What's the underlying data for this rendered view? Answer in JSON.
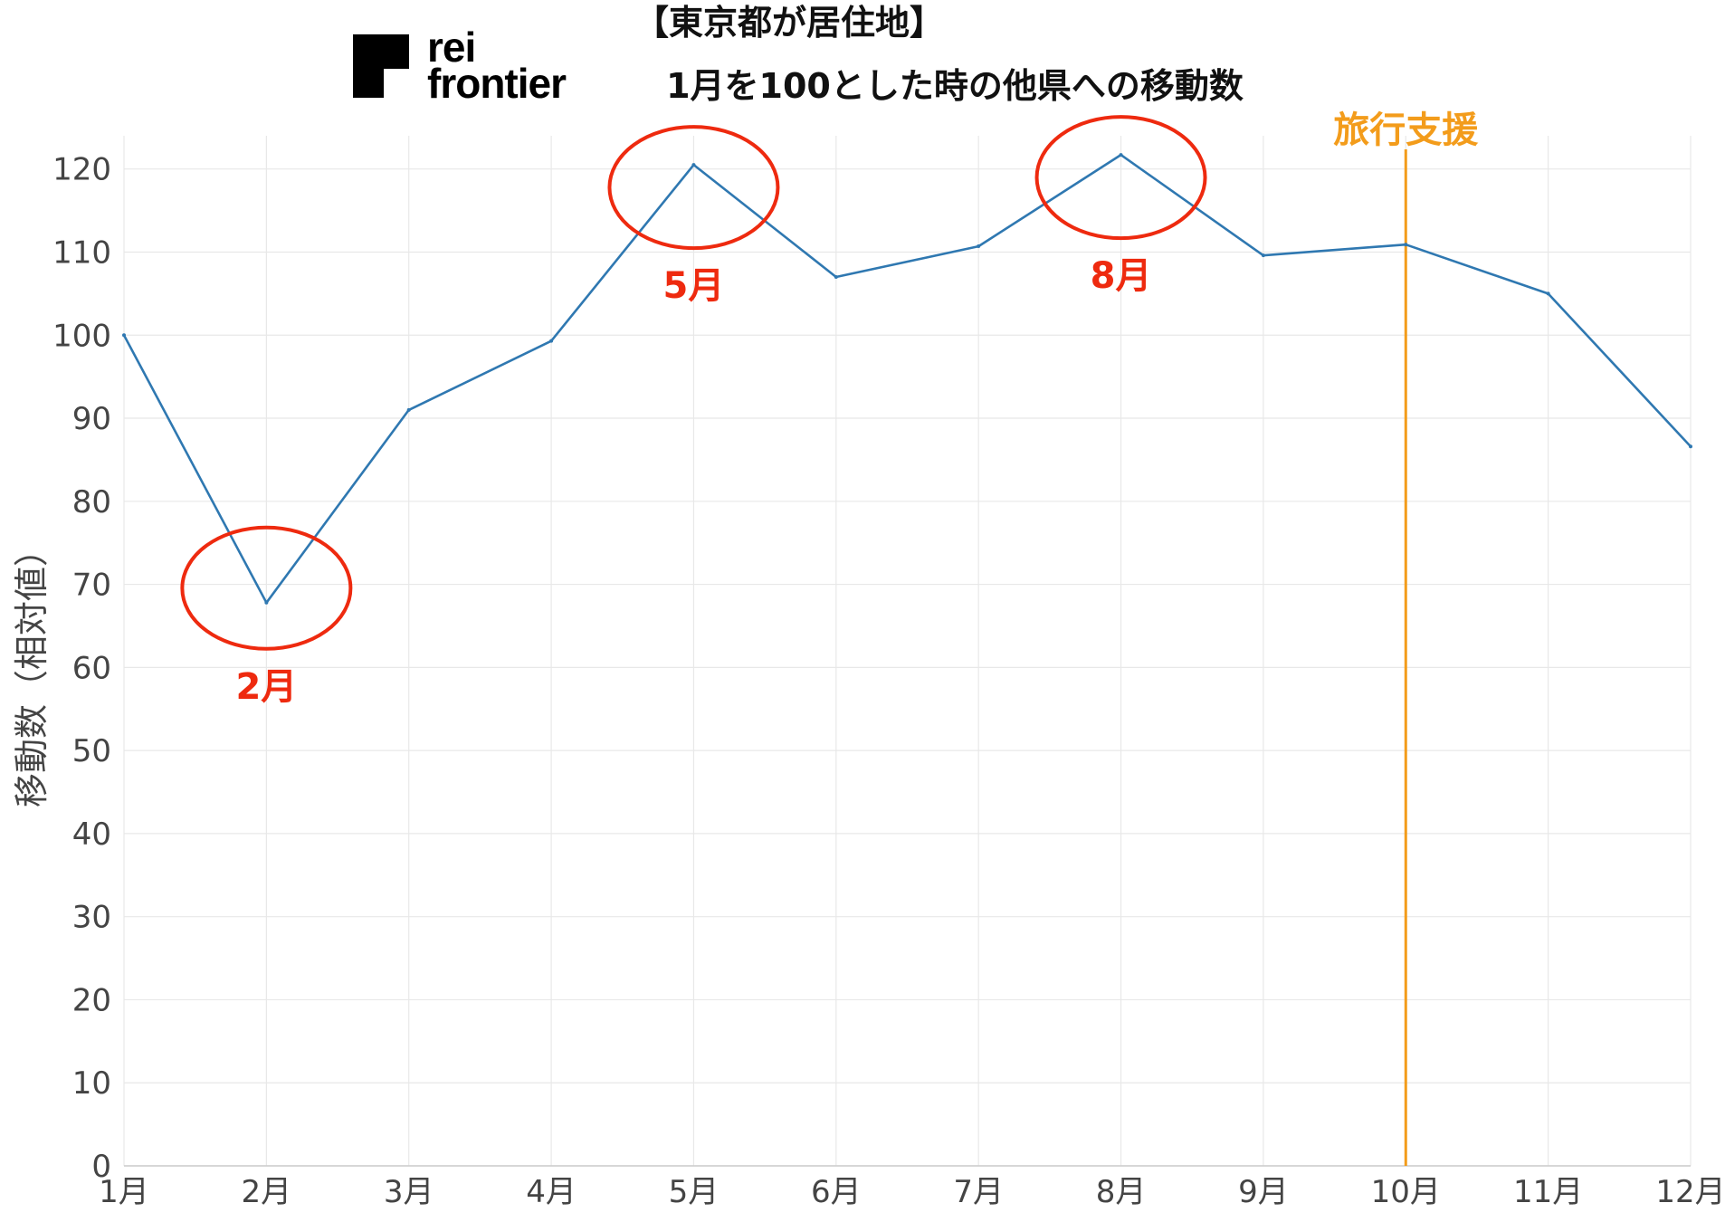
{
  "colors": {
    "line": "#2f78b1",
    "annotation": "#ee2a0f",
    "reference": "#f39c1b",
    "grid": "#e8e8e8",
    "text": "#444444"
  },
  "logo": {
    "line1": "rei",
    "line2": "frontier",
    "icon": "flag-logo-icon"
  },
  "chart_data": {
    "type": "line",
    "title": "【東京都が居住地】",
    "subtitle": "1月を100とした時の他県への移動数",
    "ylabel": "移動数（相対値）",
    "xlabel": "",
    "categories": [
      "1月",
      "2月",
      "3月",
      "4月",
      "5月",
      "6月",
      "7月",
      "8月",
      "9月",
      "10月",
      "11月",
      "12月"
    ],
    "series": [
      {
        "values": [
          100,
          67.8,
          91,
          99.3,
          120.5,
          107,
          110.7,
          121.7,
          109.6,
          110.9,
          105,
          86.6
        ]
      }
    ],
    "ylim": [
      0,
      124
    ],
    "yticks": [
      0,
      10,
      20,
      30,
      40,
      50,
      60,
      70,
      80,
      90,
      100,
      110,
      120
    ],
    "grid": true,
    "annotations": [
      {
        "label": "2月",
        "index": 1
      },
      {
        "label": "5月",
        "index": 4
      },
      {
        "label": "8月",
        "index": 7
      }
    ],
    "reference_line": {
      "label": "旅行支援",
      "index": 9
    }
  }
}
